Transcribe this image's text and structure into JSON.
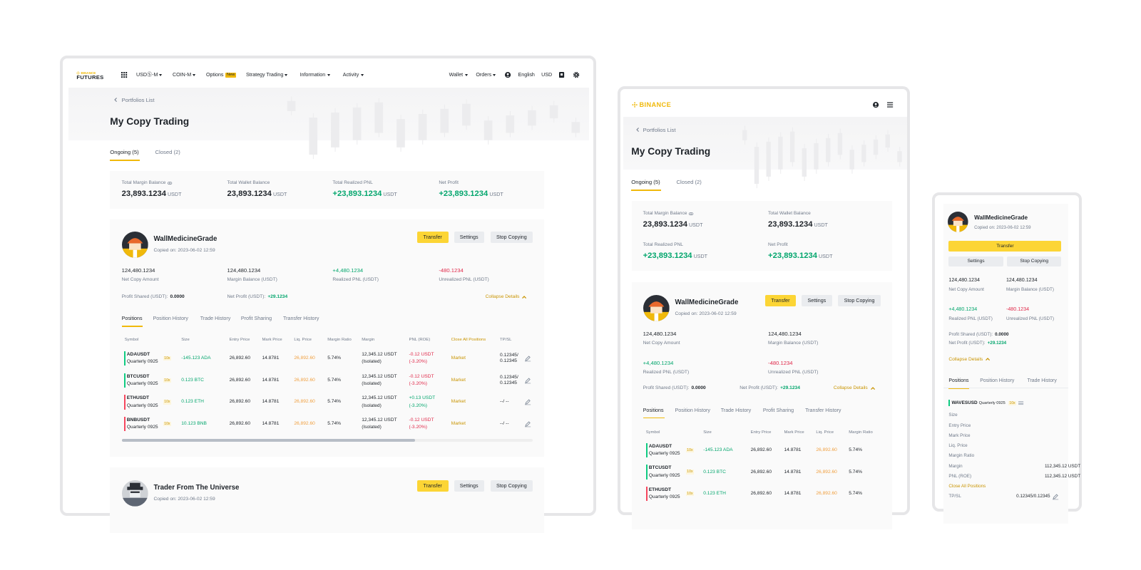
{
  "nav": {
    "brand": "BINANCE",
    "product": "FUTURES",
    "menu": [
      {
        "label": "USDⓈ-M",
        "dropdown": true
      },
      {
        "label": "COIN-M",
        "dropdown": true
      },
      {
        "label": "Options",
        "badge": "New"
      },
      {
        "label": "Strategy Trading",
        "dropdown": true
      },
      {
        "label": "Information",
        "dropdown": true
      },
      {
        "label": "Activity",
        "dropdown": true
      }
    ],
    "account": [
      {
        "label": "Wallet",
        "dropdown": true
      },
      {
        "label": "Orders",
        "dropdown": true
      }
    ],
    "language": "English",
    "currency": "USD"
  },
  "page": {
    "breadcrumb": "Portfolios List",
    "title": "My Copy Trading",
    "tabs": [
      "Ongoing (5)",
      "Closed (2)"
    ]
  },
  "summary": [
    {
      "label": "Total Margin Balance",
      "value": "23,893.1234",
      "unit": "USDT"
    },
    {
      "label": "Total Wallet Balance",
      "value": "23,893.1234",
      "unit": "USDT"
    },
    {
      "label": "Total Realized PNL",
      "value": "+23,893.1234",
      "unit": "USDT"
    },
    {
      "label": "Net Profit",
      "value": "+23,893.1234",
      "unit": "USDT"
    }
  ],
  "buttons": [
    "Transfer",
    "Settings",
    "Stop Copying"
  ],
  "traders": [
    {
      "name": "WallMedicineGrade",
      "copied": "Copied on: 2023-06-02 12:59",
      "stats": [
        {
          "value": "124,480.1234",
          "label": "Net Copy Amount"
        },
        {
          "value": "124,480.1234",
          "label": "Margin Balance (USDT)"
        },
        {
          "value": "+4,480.1234",
          "label": "Realized PNL (USDT)"
        },
        {
          "value": "-480.1234",
          "label": "Unrealized PNL (USDT)"
        }
      ],
      "profit_shared_label": "Profit Shared (USDT):",
      "profit_shared": "0.0000",
      "net_profit_label": "Net Profit (USDT):",
      "net_profit": "+29.1234",
      "collapse": "Collapse Details"
    },
    {
      "name": "Trader From The Universe",
      "copied": "Copied on: 2023-06-02 12:59"
    }
  ],
  "subtabs": [
    "Positions",
    "Position History",
    "Trade History",
    "Profit Sharing",
    "Transfer History"
  ],
  "columns": [
    "Symbol",
    "Size",
    "Entry Price",
    "Mark Price",
    "Liq. Price",
    "Margin Ratio",
    "Margin",
    "PNL (ROE)",
    "Close All Positions",
    "TP/SL"
  ],
  "positions": [
    {
      "symbol": "ADAUSDT",
      "contract": "Quarterly 0925",
      "leverage": "10x",
      "color": "#0ecb81",
      "size": "-145.123 ADA",
      "entry": "26,892.60",
      "mark": "14.8781",
      "liq": "26,892.60",
      "margin_ratio": "5.74%",
      "margin": "12,345.12 USDT",
      "margin_mode": "(Isolated)",
      "pnl": "-0.12 USDT",
      "roe": "(-3.20%)",
      "close": "Market",
      "tpsl": "0.12345/ 0.12345"
    },
    {
      "symbol": "BTCUSDT",
      "contract": "Quarterly 0925",
      "leverage": "10x",
      "color": "#0ecb81",
      "size": "0.123 BTC",
      "entry": "26,892.60",
      "mark": "14.8781",
      "liq": "26,892.60",
      "margin_ratio": "5.74%",
      "margin": "12,345.12 USDT",
      "margin_mode": "(Isolated)",
      "pnl": "-0.12 USDT",
      "roe": "(-3.20%)",
      "close": "Market",
      "tpsl": "0.12345/ 0.12345"
    },
    {
      "symbol": "ETHUSDT",
      "contract": "Quarterly 0925",
      "leverage": "10x",
      "color": "#f6465d",
      "size": "0.123 ETH",
      "entry": "26,892.60",
      "mark": "14.8781",
      "liq": "26,892.60",
      "margin_ratio": "5.74%",
      "margin": "12,345.12 USDT",
      "margin_mode": "(Isolated)",
      "pnl": "+0.13 USDT",
      "roe": "(-3.20%)",
      "close": "Market",
      "tpsl": "--/ --"
    },
    {
      "symbol": "BNBUSDT",
      "contract": "Quarterly 0925",
      "leverage": "10x",
      "color": "#f6465d",
      "size": "10.123 BNB",
      "entry": "26,892.60",
      "mark": "14.8781",
      "liq": "26,892.60",
      "margin_ratio": "5.74%",
      "margin": "12,345.12 USDT",
      "margin_mode": "(Isolated)",
      "pnl": "-0.12 USDT",
      "roe": "(-3.20%)",
      "close": "Market",
      "tpsl": "--/ --"
    }
  ],
  "mobile_position": {
    "symbol": "WAVESUSD",
    "contract": "Quarterly 0925",
    "leverage": "10x",
    "color": "#0ecb81",
    "fields": [
      {
        "label": "Size"
      },
      {
        "label": "Entry Price"
      },
      {
        "label": "Mark Price"
      },
      {
        "label": "Liq. Price"
      },
      {
        "label": "Margin Ratio"
      },
      {
        "label": "Margin",
        "value": "112,345.12 USDT"
      },
      {
        "label": "PNL (ROE)",
        "value": "112,345.12 USDT"
      }
    ],
    "tpsl_label": "TP/SL",
    "tpsl": "0.12345/0.12345"
  }
}
